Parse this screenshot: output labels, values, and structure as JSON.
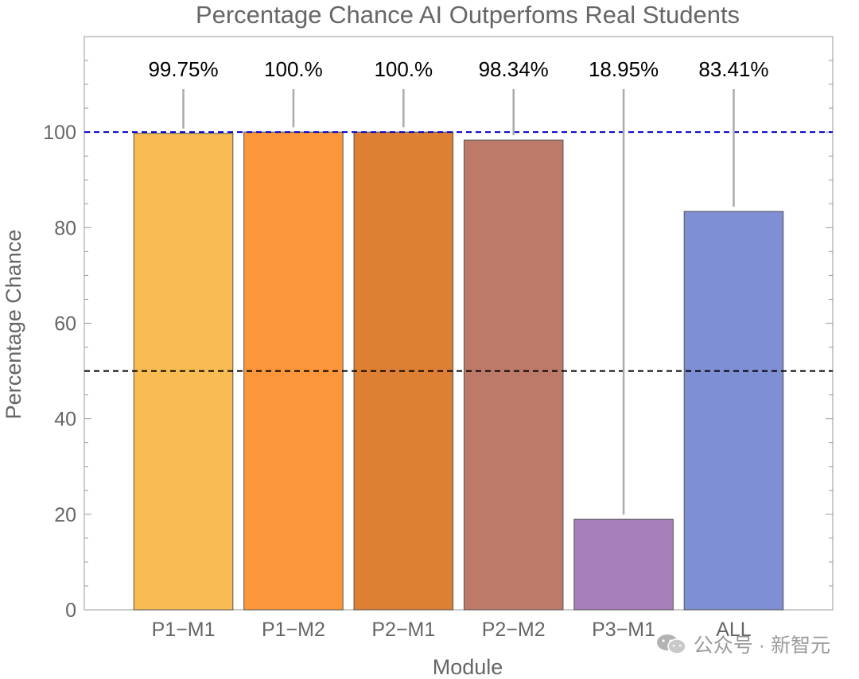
{
  "chart_data": {
    "type": "bar",
    "title": "Percentage Chance AI Outperfoms Real Students",
    "xlabel": "Module",
    "ylabel": "Percentage Chance",
    "categories": [
      "P1−M1",
      "P1−M2",
      "P2−M1",
      "P2−M2",
      "P3−M1",
      "ALL"
    ],
    "values": [
      99.75,
      100.0,
      100.0,
      98.34,
      18.95,
      83.41
    ],
    "data_labels": [
      "99.75%",
      "100.%",
      "100.%",
      "98.34%",
      "18.95%",
      "83.41%"
    ],
    "colors": [
      "#F9BC53",
      "#FC963A",
      "#DE8033",
      "#BE7A69",
      "#A57EBA",
      "#7F8FD4"
    ],
    "ylim": [
      0,
      120
    ],
    "yticks": [
      0,
      20,
      40,
      60,
      80,
      100
    ],
    "reference_lines": [
      {
        "value": 100,
        "color": "#0000CC",
        "style": "dashed"
      },
      {
        "value": 50,
        "color": "#000000",
        "style": "dashed"
      }
    ],
    "grid": false
  },
  "watermark": {
    "text": "公众号 · 新智元",
    "icon": "wechat-icon"
  }
}
